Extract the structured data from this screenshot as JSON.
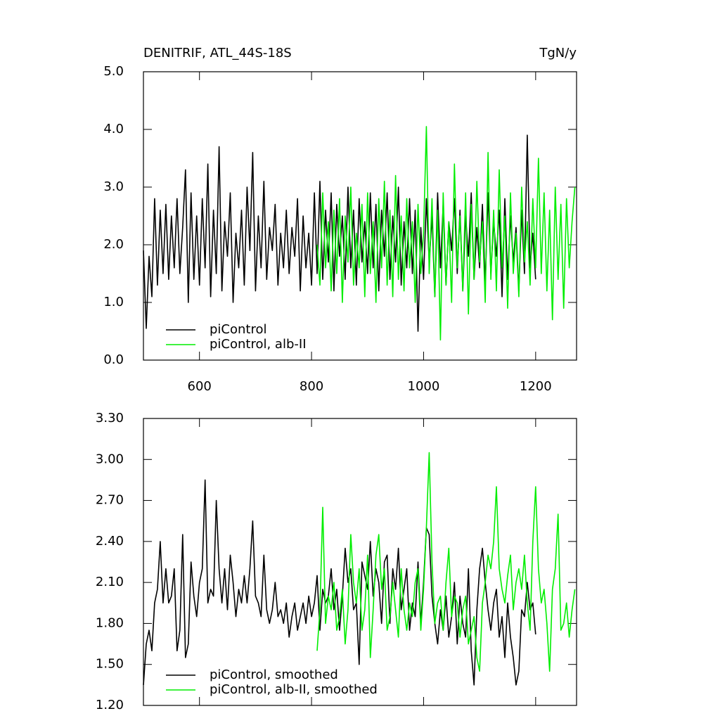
{
  "chart_data": [
    {
      "type": "line",
      "title": "DENITRIF, ATL_44S-18S",
      "unit": "TgN/y",
      "xlim": [
        500,
        1273
      ],
      "ylim": [
        0,
        5
      ],
      "xticks": [
        600,
        800,
        1000,
        1200
      ],
      "xtick_labels": true,
      "yticks": [
        {
          "value": 0,
          "label": "0.0"
        },
        {
          "value": 1,
          "label": "1.0"
        },
        {
          "value": 2,
          "label": "2.0"
        },
        {
          "value": 3,
          "label": "3.0"
        },
        {
          "value": 4,
          "label": "4.0"
        },
        {
          "value": 5,
          "label": "5.0"
        }
      ],
      "legend": "lower left",
      "series": [
        {
          "name": "piControl",
          "color": "#000000",
          "x": [
            500,
            505,
            510,
            515,
            520,
            525,
            530,
            535,
            540,
            545,
            550,
            555,
            560,
            565,
            570,
            575,
            580,
            585,
            590,
            595,
            600,
            605,
            610,
            615,
            620,
            625,
            630,
            635,
            640,
            645,
            650,
            655,
            660,
            665,
            670,
            675,
            680,
            685,
            690,
            695,
            700,
            705,
            710,
            715,
            720,
            725,
            730,
            735,
            740,
            745,
            750,
            755,
            760,
            765,
            770,
            775,
            780,
            785,
            790,
            795,
            800,
            805,
            810,
            815,
            820,
            825,
            830,
            835,
            840,
            845,
            850,
            855,
            860,
            865,
            870,
            875,
            880,
            885,
            890,
            895,
            900,
            905,
            910,
            915,
            920,
            925,
            930,
            935,
            940,
            945,
            950,
            955,
            960,
            965,
            970,
            975,
            980,
            985,
            990,
            995,
            1000,
            1005,
            1010,
            1015,
            1020,
            1025,
            1030,
            1035,
            1040,
            1045,
            1050,
            1055,
            1060,
            1065,
            1070,
            1075,
            1080,
            1085,
            1090,
            1095,
            1100,
            1105,
            1110,
            1115,
            1120,
            1125,
            1130,
            1135,
            1140,
            1145,
            1150,
            1155,
            1160,
            1165,
            1170,
            1175,
            1180,
            1185,
            1190,
            1195,
            1200
          ],
          "values": [
            1.9,
            0.55,
            1.8,
            1.1,
            2.8,
            1.3,
            2.6,
            1.5,
            2.7,
            1.4,
            2.5,
            1.6,
            2.8,
            1.5,
            2.3,
            3.3,
            1.0,
            2.9,
            1.4,
            2.5,
            1.3,
            2.8,
            1.6,
            3.4,
            1.1,
            2.6,
            1.5,
            3.7,
            1.2,
            2.4,
            1.8,
            2.9,
            1.0,
            2.2,
            1.6,
            2.6,
            1.3,
            3.0,
            1.9,
            3.6,
            1.2,
            2.5,
            1.6,
            3.1,
            1.4,
            2.3,
            1.9,
            2.7,
            1.3,
            2.2,
            1.6,
            2.6,
            1.5,
            2.3,
            1.8,
            2.8,
            1.2,
            2.5,
            1.6,
            2.2,
            1.3,
            2.9,
            1.5,
            3.1,
            1.4,
            2.6,
            1.7,
            2.9,
            1.2,
            2.7,
            1.8,
            2.5,
            1.4,
            3.0,
            1.6,
            2.6,
            1.3,
            2.8,
            1.7,
            2.4,
            1.5,
            2.9,
            1.6,
            2.7,
            1.2,
            2.6,
            1.8,
            2.9,
            1.4,
            2.5,
            1.7,
            3.0,
            1.3,
            2.4,
            1.6,
            2.8,
            1.5,
            2.6,
            0.5,
            2.3,
            1.4,
            2.8,
            1.7,
            2.5,
            1.1,
            2.9,
            1.6,
            2.7,
            1.3,
            2.4,
            1.9,
            2.8,
            1.5,
            2.6,
            1.2,
            2.5,
            1.8,
            2.9,
            1.4,
            2.3,
            1.6,
            2.7,
            1.3,
            2.9,
            1.5,
            2.4,
            1.8,
            2.6,
            1.1,
            2.8,
            1.4,
            2.5,
            1.7,
            2.3,
            1.2,
            2.6,
            1.5,
            3.9,
            1.6,
            2.2,
            1.4
          ]
        },
        {
          "name": "piControl, alb-II",
          "color": "#00ee00",
          "x": [
            810,
            815,
            820,
            825,
            830,
            835,
            840,
            845,
            850,
            855,
            860,
            865,
            870,
            875,
            880,
            885,
            890,
            895,
            900,
            905,
            910,
            915,
            920,
            925,
            930,
            935,
            940,
            945,
            950,
            955,
            960,
            965,
            970,
            975,
            980,
            985,
            990,
            995,
            1000,
            1005,
            1010,
            1015,
            1020,
            1025,
            1030,
            1035,
            1040,
            1045,
            1050,
            1055,
            1060,
            1065,
            1070,
            1075,
            1080,
            1085,
            1090,
            1095,
            1100,
            1105,
            1110,
            1115,
            1120,
            1125,
            1130,
            1135,
            1140,
            1145,
            1150,
            1155,
            1160,
            1165,
            1170,
            1175,
            1180,
            1185,
            1190,
            1195,
            1200,
            1205,
            1210,
            1215,
            1220,
            1225,
            1230,
            1235,
            1240,
            1245,
            1250,
            1255,
            1260,
            1265,
            1270
          ],
          "values": [
            2.0,
            1.3,
            2.9,
            1.6,
            2.4,
            1.2,
            2.6,
            1.5,
            2.8,
            1.0,
            2.5,
            1.7,
            3.0,
            1.3,
            2.2,
            1.6,
            2.7,
            1.1,
            2.9,
            1.5,
            2.4,
            1.0,
            2.8,
            1.6,
            3.1,
            1.3,
            2.6,
            1.1,
            3.2,
            1.4,
            2.5,
            1.2,
            2.8,
            1.6,
            2.4,
            1.0,
            2.7,
            1.5,
            2.2,
            4.05,
            1.5,
            2.8,
            1.1,
            2.6,
            0.35,
            2.9,
            1.3,
            2.4,
            1.0,
            3.4,
            1.6,
            2.5,
            1.2,
            2.9,
            0.8,
            2.7,
            1.4,
            3.1,
            1.7,
            2.4,
            1.0,
            3.6,
            1.4,
            2.6,
            1.2,
            3.3,
            1.6,
            2.5,
            0.9,
            2.9,
            1.5,
            2.2,
            1.1,
            3.0,
            1.7,
            2.4,
            1.3,
            2.8,
            1.6,
            3.5,
            1.5,
            2.9,
            1.2,
            2.6,
            0.7,
            3.0,
            1.4,
            2.7,
            0.9,
            2.8,
            1.6,
            2.4,
            3.0
          ]
        }
      ]
    },
    {
      "type": "line",
      "xlim": [
        500,
        1273
      ],
      "ylim": [
        1.2,
        3.3
      ],
      "xticks": [
        600,
        800,
        1000,
        1200
      ],
      "xtick_labels": false,
      "yticks": [
        {
          "value": 1.2,
          "label": "1.20"
        },
        {
          "value": 1.5,
          "label": "1.50"
        },
        {
          "value": 1.8,
          "label": "1.80"
        },
        {
          "value": 2.1,
          "label": "2.10"
        },
        {
          "value": 2.4,
          "label": "2.40"
        },
        {
          "value": 2.7,
          "label": "2.70"
        },
        {
          "value": 3.0,
          "label": "3.00"
        },
        {
          "value": 3.3,
          "label": "3.30"
        }
      ],
      "legend": "lower left",
      "series": [
        {
          "name": "piControl, smoothed",
          "color": "#000000",
          "x": [
            500,
            505,
            510,
            515,
            520,
            525,
            530,
            535,
            540,
            545,
            550,
            555,
            560,
            565,
            570,
            575,
            580,
            585,
            590,
            595,
            600,
            605,
            610,
            615,
            620,
            625,
            630,
            635,
            640,
            645,
            650,
            655,
            660,
            665,
            670,
            675,
            680,
            685,
            690,
            695,
            700,
            705,
            710,
            715,
            720,
            725,
            730,
            735,
            740,
            745,
            750,
            755,
            760,
            765,
            770,
            775,
            780,
            785,
            790,
            795,
            800,
            805,
            810,
            815,
            820,
            825,
            830,
            835,
            840,
            845,
            850,
            855,
            860,
            865,
            870,
            875,
            880,
            885,
            890,
            895,
            900,
            905,
            910,
            915,
            920,
            925,
            930,
            935,
            940,
            945,
            950,
            955,
            960,
            965,
            970,
            975,
            980,
            985,
            990,
            995,
            1000,
            1005,
            1010,
            1015,
            1020,
            1025,
            1030,
            1035,
            1040,
            1045,
            1050,
            1055,
            1060,
            1065,
            1070,
            1075,
            1080,
            1085,
            1090,
            1095,
            1100,
            1105,
            1110,
            1115,
            1120,
            1125,
            1130,
            1135,
            1140,
            1145,
            1150,
            1155,
            1160,
            1165,
            1170,
            1175,
            1180,
            1185,
            1190,
            1195,
            1200
          ],
          "values": [
            1.35,
            1.65,
            1.75,
            1.6,
            1.95,
            2.05,
            2.4,
            1.95,
            2.2,
            1.95,
            2.0,
            2.2,
            1.6,
            1.75,
            2.45,
            1.55,
            1.65,
            2.25,
            2.0,
            1.85,
            2.1,
            2.2,
            2.85,
            1.95,
            2.05,
            2.0,
            2.7,
            2.2,
            1.95,
            2.2,
            1.9,
            2.3,
            2.1,
            1.85,
            2.05,
            1.95,
            2.15,
            1.95,
            2.2,
            2.55,
            2.0,
            1.95,
            1.85,
            2.3,
            1.9,
            1.8,
            1.9,
            2.1,
            1.85,
            1.9,
            1.8,
            1.95,
            1.7,
            1.85,
            1.95,
            1.75,
            1.85,
            1.95,
            1.8,
            2.0,
            1.85,
            1.95,
            2.15,
            1.75,
            2.05,
            1.95,
            2.0,
            2.2,
            1.9,
            2.05,
            1.75,
            2.0,
            2.35,
            2.1,
            2.2,
            1.9,
            1.95,
            1.5,
            2.25,
            2.15,
            2.05,
            2.4,
            2.0,
            2.2,
            2.1,
            1.8,
            2.25,
            2.3,
            1.8,
            2.2,
            2.05,
            2.35,
            1.9,
            2.05,
            2.2,
            1.75,
            1.95,
            1.85,
            2.25,
            1.8,
            2.1,
            2.5,
            2.45,
            2.0,
            1.8,
            1.65,
            1.9,
            1.75,
            2.0,
            1.7,
            1.85,
            2.1,
            1.65,
            2.0,
            1.8,
            1.7,
            2.2,
            1.6,
            1.35,
            1.9,
            2.2,
            2.35,
            2.1,
            1.9,
            1.75,
            1.95,
            2.05,
            1.7,
            1.85,
            1.55,
            1.95,
            1.7,
            1.55,
            1.35,
            1.45,
            1.9,
            1.85,
            2.1,
            1.9,
            1.95,
            1.72
          ]
        },
        {
          "name": "piControl, alb-II, smoothed",
          "color": "#00ee00",
          "x": [
            810,
            815,
            820,
            825,
            830,
            835,
            840,
            845,
            850,
            855,
            860,
            865,
            870,
            875,
            880,
            885,
            890,
            895,
            900,
            905,
            910,
            915,
            920,
            925,
            930,
            935,
            940,
            945,
            950,
            955,
            960,
            965,
            970,
            975,
            980,
            985,
            990,
            995,
            1000,
            1005,
            1010,
            1015,
            1020,
            1025,
            1030,
            1035,
            1040,
            1045,
            1050,
            1055,
            1060,
            1065,
            1070,
            1075,
            1080,
            1085,
            1090,
            1095,
            1100,
            1105,
            1110,
            1115,
            1120,
            1125,
            1130,
            1135,
            1140,
            1145,
            1150,
            1155,
            1160,
            1165,
            1170,
            1175,
            1180,
            1185,
            1190,
            1195,
            1200,
            1205,
            1210,
            1215,
            1220,
            1225,
            1230,
            1235,
            1240,
            1245,
            1250,
            1255,
            1260,
            1265,
            1270
          ],
          "values": [
            1.6,
            1.9,
            2.65,
            1.8,
            2.0,
            1.9,
            2.1,
            1.75,
            1.85,
            2.05,
            1.65,
            1.9,
            2.45,
            2.1,
            1.95,
            2.2,
            1.75,
            1.9,
            2.3,
            1.55,
            1.9,
            2.3,
            2.45,
            2.05,
            2.2,
            1.75,
            1.85,
            2.1,
            1.9,
            1.7,
            2.2,
            1.9,
            1.75,
            1.95,
            1.85,
            2.1,
            2.2,
            1.75,
            2.05,
            2.5,
            3.05,
            2.25,
            1.8,
            1.95,
            2.0,
            1.75,
            2.1,
            2.35,
            1.85,
            2.0,
            1.95,
            1.7,
            1.9,
            2.0,
            1.65,
            1.75,
            1.85,
            1.55,
            1.45,
            1.95,
            2.1,
            2.3,
            2.2,
            2.4,
            2.8,
            2.2,
            2.05,
            1.95,
            2.15,
            2.3,
            1.9,
            2.1,
            2.2,
            2.05,
            2.3,
            1.95,
            1.75,
            2.4,
            2.8,
            2.2,
            1.95,
            2.05,
            1.8,
            1.45,
            2.05,
            2.2,
            2.6,
            1.75,
            1.8,
            1.95,
            1.7,
            1.9,
            2.05
          ]
        }
      ]
    }
  ]
}
